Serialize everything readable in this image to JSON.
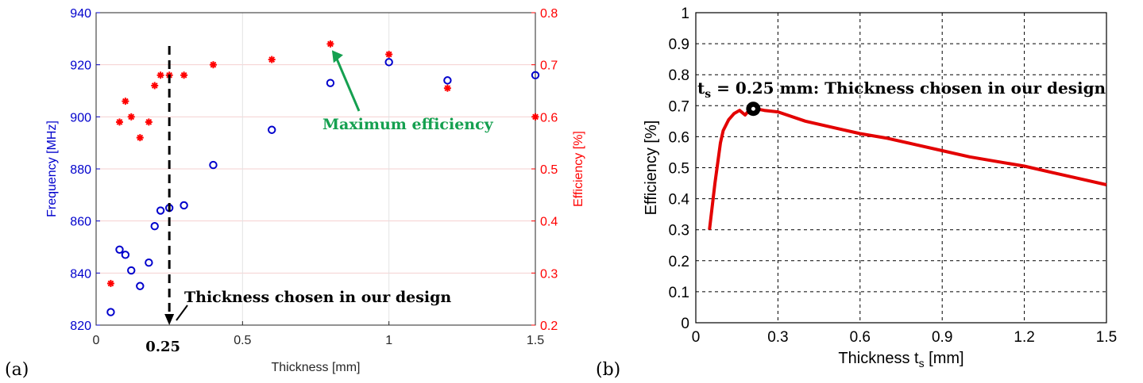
{
  "colors": {
    "freq": "#0000cc",
    "eff_left": "#ff0000",
    "line_right": "#e30000",
    "annotation_green": "#15a050",
    "black": "#000000",
    "grid_left": "#f5d0d0"
  },
  "chart_data": [
    {
      "panel_label": "(a)",
      "type": "scatter",
      "xlabel": "Thickness [mm]",
      "ylabel_left": "Frequency [MHz]",
      "ylabel_right": "Efficiency [%]",
      "xlim": [
        0,
        1.5
      ],
      "ylim_left": [
        820,
        940
      ],
      "ylim_right": [
        0.2,
        0.8
      ],
      "x_ticks": [
        "0",
        "0.5",
        "1",
        "1.5"
      ],
      "y_ticks_left": [
        "820",
        "840",
        "860",
        "880",
        "900",
        "920",
        "940"
      ],
      "y_ticks_right": [
        "0.2",
        "0.3",
        "0.4",
        "0.5",
        "0.6",
        "0.7",
        "0.8"
      ],
      "extra_x_tick": "0.25",
      "grid": true,
      "series": [
        {
          "marker": "o",
          "axis": "left",
          "points": [
            [
              0.05,
              825
            ],
            [
              0.08,
              849
            ],
            [
              0.1,
              847
            ],
            [
              0.12,
              841
            ],
            [
              0.15,
              835
            ],
            [
              0.18,
              844
            ],
            [
              0.2,
              858
            ],
            [
              0.22,
              864
            ],
            [
              0.25,
              865
            ],
            [
              0.3,
              866
            ],
            [
              0.4,
              881.5
            ],
            [
              0.6,
              895
            ],
            [
              0.8,
              913
            ],
            [
              1.0,
              921
            ],
            [
              1.2,
              914
            ],
            [
              1.5,
              916
            ]
          ]
        },
        {
          "marker": "*",
          "axis": "right",
          "points": [
            [
              0.05,
              0.28
            ],
            [
              0.08,
              0.59
            ],
            [
              0.1,
              0.63
            ],
            [
              0.12,
              0.6
            ],
            [
              0.15,
              0.56
            ],
            [
              0.18,
              0.59
            ],
            [
              0.2,
              0.66
            ],
            [
              0.22,
              0.68
            ],
            [
              0.25,
              0.68
            ],
            [
              0.3,
              0.68
            ],
            [
              0.4,
              0.7
            ],
            [
              0.6,
              0.71
            ],
            [
              0.8,
              0.74
            ],
            [
              1.0,
              0.72
            ],
            [
              1.2,
              0.655
            ],
            [
              1.5,
              0.6
            ]
          ]
        }
      ],
      "annotations": {
        "max_eff": "Maximum efficiency",
        "thickness_choice": "Thickness chosen in our design"
      }
    },
    {
      "panel_label": "(b)",
      "type": "line",
      "xlabel_main": "Thickness t",
      "xlabel_sub": "s",
      "xlabel_unit": " [mm]",
      "ylabel": "Efficiency [%]",
      "xlim": [
        0,
        1.5
      ],
      "ylim": [
        0,
        1
      ],
      "x_ticks": [
        "0",
        "0.3",
        "0.6",
        "0.9",
        "1.2",
        "1.5"
      ],
      "y_ticks": [
        "0",
        "0.1",
        "0.2",
        "0.3",
        "0.4",
        "0.5",
        "0.6",
        "0.7",
        "0.8",
        "0.9",
        "1"
      ],
      "grid": true,
      "x": [
        0.05,
        0.07,
        0.09,
        0.1,
        0.12,
        0.14,
        0.16,
        0.18,
        0.2,
        0.22,
        0.25,
        0.3,
        0.4,
        0.5,
        0.6,
        0.7,
        0.8,
        0.9,
        1.0,
        1.1,
        1.2,
        1.3,
        1.4,
        1.5
      ],
      "y": [
        0.3,
        0.45,
        0.58,
        0.62,
        0.655,
        0.675,
        0.685,
        0.67,
        0.69,
        0.69,
        0.685,
        0.68,
        0.65,
        0.63,
        0.61,
        0.595,
        0.575,
        0.555,
        0.535,
        0.52,
        0.505,
        0.485,
        0.465,
        0.445
      ],
      "marked_point": [
        0.21,
        0.69
      ],
      "annotation_main": "t",
      "annotation_sub": "s",
      "annotation_rest": " = 0.25 mm: Thickness chosen in our design"
    }
  ]
}
